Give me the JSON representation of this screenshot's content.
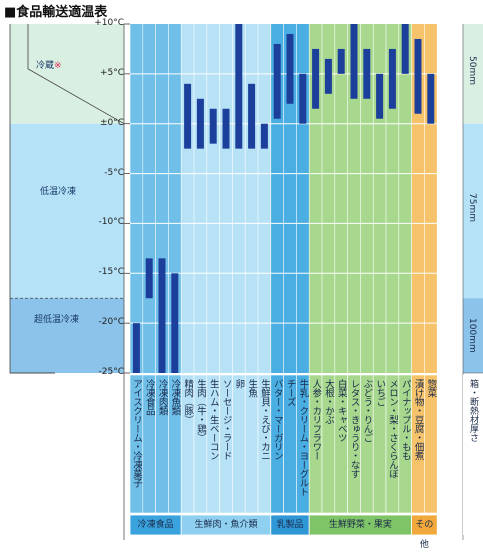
{
  "chart_data": {
    "type": "range-bar",
    "title": "■食品輸送適温表",
    "ylim": [
      -25,
      10
    ],
    "yticks": [
      {
        "value": 10,
        "label": "+10°C"
      },
      {
        "value": 5,
        "label": "+5°C"
      },
      {
        "value": 0,
        "label": "±0°C"
      },
      {
        "value": -5,
        "label": "-5°C"
      },
      {
        "value": -10,
        "label": "-10°C"
      },
      {
        "value": -15,
        "label": "-15°C"
      },
      {
        "value": -20,
        "label": "-20°C"
      },
      {
        "value": -25,
        "label": "-25°C"
      }
    ],
    "zones": [
      {
        "label": "冷蔵",
        "mark": "※",
        "from": 0,
        "to": 10,
        "color": "#d8efe1"
      },
      {
        "label": "低温冷凍",
        "from": -17.5,
        "to": 0,
        "color": "#b6e2f7"
      },
      {
        "label": "超低温冷凍",
        "from": -25,
        "to": -17.5,
        "color": "#8cc3ea"
      }
    ],
    "items": [
      {
        "label": "アイスクリーム・冷凍菓子",
        "group": 0,
        "min": -25,
        "max": -20
      },
      {
        "label": "冷凍食品",
        "group": 0,
        "min": -17.5,
        "max": -13.5
      },
      {
        "label": "冷凍肉類",
        "group": 0,
        "min": -25,
        "max": -13.5
      },
      {
        "label": "冷凍魚類",
        "group": 0,
        "min": -25,
        "max": -15
      },
      {
        "label": "精肉（豚）",
        "group": 1,
        "min": -2.5,
        "max": 4
      },
      {
        "label": "生肉（牛・鶏）",
        "group": 1,
        "min": -2.5,
        "max": 2.5
      },
      {
        "label": "生ハム・生ベーコン",
        "group": 1,
        "min": -2,
        "max": 1.5
      },
      {
        "label": "ソーセージ・ラード",
        "group": 1,
        "min": -2.5,
        "max": 1.5
      },
      {
        "label": "卵",
        "group": 1,
        "min": -2.5,
        "max": 10
      },
      {
        "label": "生魚",
        "group": 1,
        "min": -2.5,
        "max": 4
      },
      {
        "label": "生鮮貝・えび・カニ",
        "group": 1,
        "min": -2.5,
        "max": 0
      },
      {
        "label": "バター・マーガリン",
        "group": 2,
        "min": 0.5,
        "max": 8
      },
      {
        "label": "チーズ",
        "group": 2,
        "min": 2,
        "max": 9
      },
      {
        "label": "牛乳・クリーム・ヨーグルト",
        "group": 2,
        "min": 0,
        "max": 5
      },
      {
        "label": "人参・カリフラワー",
        "group": 3,
        "min": 1.5,
        "max": 7.5
      },
      {
        "label": "大根・かぶ",
        "group": 3,
        "min": 3,
        "max": 6.5
      },
      {
        "label": "白菜・キャベツ",
        "group": 3,
        "min": 5,
        "max": 7.5
      },
      {
        "label": "レタス・きゅうり・なす",
        "group": 3,
        "min": 2.5,
        "max": 10
      },
      {
        "label": "ぶどう・りんご",
        "group": 3,
        "min": 2.5,
        "max": 7.5
      },
      {
        "label": "いちご",
        "group": 3,
        "min": 0.5,
        "max": 5
      },
      {
        "label": "メロン・梨・さくらんぼ",
        "group": 3,
        "min": 1.5,
        "max": 7.5
      },
      {
        "label": "パイナップル・もも",
        "group": 3,
        "min": 5,
        "max": 10
      },
      {
        "label": "漬け物・豆腐・佃煮",
        "group": 4,
        "min": 1,
        "max": 8.5
      },
      {
        "label": "惣菜",
        "group": 4,
        "min": 0,
        "max": 5
      }
    ],
    "groups": [
      {
        "label": "冷凍食品",
        "color": "#6fbfe9",
        "labelColor": "#3aa3de"
      },
      {
        "label": "生鮮肉・魚介類",
        "color": "#b7e2f6",
        "labelColor": "#8fd0f0"
      },
      {
        "label": "乳製品",
        "color": "#4aaee2",
        "labelColor": "#2f97d6"
      },
      {
        "label": "生鮮野菜・果実",
        "color": "#a8d88e",
        "labelColor": "#7fc466"
      },
      {
        "label": "その他",
        "color": "#f7c36a",
        "labelColor": "#f2a93b"
      }
    ],
    "thickness": [
      {
        "label": "50mm",
        "from": 0,
        "to": 10,
        "color": "#d8efe1"
      },
      {
        "label": "75mm",
        "from": -17.5,
        "to": 0,
        "color": "#b6e2f7"
      },
      {
        "label": "100mm",
        "from": -25,
        "to": -17.5,
        "color": "#8cc3ea"
      }
    ],
    "thicknessHeader": "箱・断熱材厚さ",
    "barColor": "#1b3f9a",
    "gridColor": "#ffffff"
  }
}
